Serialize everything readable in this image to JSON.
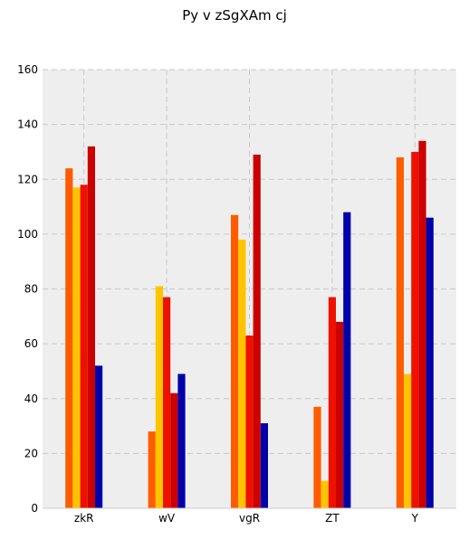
{
  "chart_data": {
    "type": "bar",
    "title": "Py v zSgXAm cj",
    "xlabel": "",
    "ylabel": "",
    "categories": [
      "zkR",
      "wV",
      "vgR",
      "ZT",
      "Y"
    ],
    "ylim": [
      0,
      160
    ],
    "yticks": [
      0,
      20,
      40,
      60,
      80,
      100,
      120,
      140,
      160
    ],
    "grid": true,
    "legend": "none",
    "plot_background": "#eeeeee",
    "series": [
      {
        "color": "#ff5c00",
        "values": [
          124,
          28,
          107,
          37,
          128
        ]
      },
      {
        "color": "#ffc400",
        "values": [
          117,
          81,
          98,
          10,
          49
        ]
      },
      {
        "color": "#ee1100",
        "values": [
          118,
          77,
          63,
          77,
          130
        ]
      },
      {
        "color": "#cc0000",
        "values": [
          132,
          42,
          129,
          68,
          134
        ]
      },
      {
        "color": "#0000aa",
        "values": [
          52,
          49,
          31,
          108,
          106
        ]
      }
    ]
  }
}
